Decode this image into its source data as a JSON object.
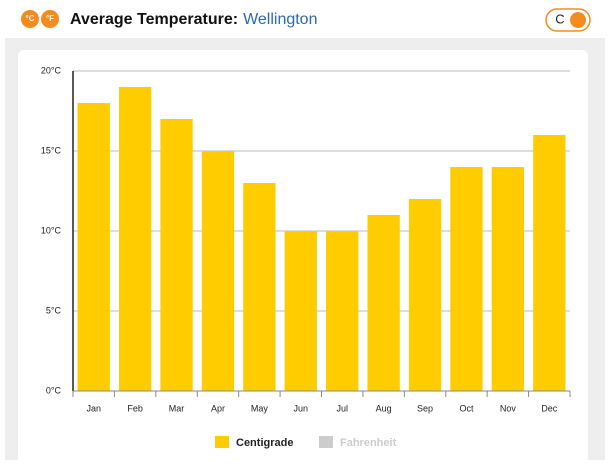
{
  "header": {
    "icons": [
      "°C",
      "°F"
    ],
    "title": "Average Temperature:",
    "location": "Wellington",
    "toggle": "C"
  },
  "chart_data": {
    "type": "bar",
    "categories": [
      "Jan",
      "Feb",
      "Mar",
      "Apr",
      "May",
      "Jun",
      "Jul",
      "Aug",
      "Sep",
      "Oct",
      "Nov",
      "Dec"
    ],
    "series": [
      {
        "name": "Centigrade",
        "color": "#ffcc00",
        "values": [
          18,
          19,
          17,
          15,
          13,
          10,
          10,
          11,
          12,
          14,
          14,
          16
        ]
      }
    ],
    "legend_inactive": {
      "name": "Fahrenheit",
      "color": "#cccccc"
    },
    "ylim": [
      0,
      20
    ],
    "yticks": [
      {
        "value": 0,
        "label": "0°C"
      },
      {
        "value": 5,
        "label": "5°C"
      },
      {
        "value": 10,
        "label": "10°C"
      },
      {
        "value": 15,
        "label": "15°C"
      },
      {
        "value": 20,
        "label": "20°C"
      }
    ],
    "grid": true
  }
}
